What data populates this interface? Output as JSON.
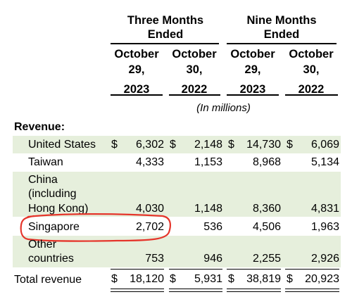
{
  "header": {
    "three_months": "Three Months\nEnded",
    "nine_months": "Nine Months\nEnded",
    "columns": [
      {
        "month": "October",
        "day": "29,",
        "year": "2023"
      },
      {
        "month": "October",
        "day": "30,",
        "year": "2022"
      },
      {
        "month": "October",
        "day": "29,",
        "year": "2023"
      },
      {
        "month": "October",
        "day": "30,",
        "year": "2022"
      }
    ],
    "units_note": "(In millions)"
  },
  "section_label": "Revenue:",
  "rows": [
    {
      "label": "United States",
      "values": [
        "6,302",
        "2,148",
        "14,730",
        "6,069"
      ],
      "dollar": true
    },
    {
      "label": "Taiwan",
      "values": [
        "4,333",
        "1,153",
        "8,968",
        "5,134"
      ],
      "dollar": false
    },
    {
      "label_lines": [
        "China",
        "(including",
        "Hong Kong)"
      ],
      "values": [
        "4,030",
        "1,148",
        "8,360",
        "4,831"
      ],
      "dollar": false
    },
    {
      "label": "Singapore",
      "values": [
        "2,702",
        "536",
        "4,506",
        "1,963"
      ],
      "dollar": false,
      "circled": true
    },
    {
      "label_lines": [
        "Other",
        "countries"
      ],
      "values": [
        "753",
        "946",
        "2,255",
        "2,926"
      ],
      "dollar": false
    }
  ],
  "total": {
    "label": "Total revenue",
    "values": [
      "18,120",
      "5,931",
      "38,819",
      "20,923"
    ],
    "dollar_sign": "$"
  },
  "colors": {
    "band": "#e6efdc",
    "annotation": "#e5352b"
  }
}
